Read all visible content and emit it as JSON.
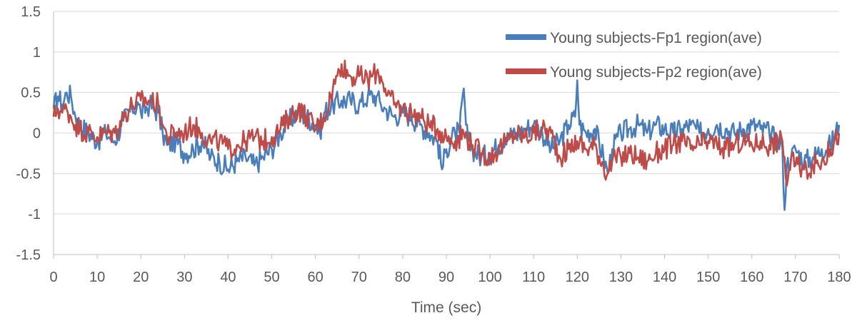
{
  "chart_data": {
    "type": "line",
    "title": "",
    "xlabel": "Time (sec)",
    "ylabel": "",
    "xlim": [
      0,
      180
    ],
    "ylim": [
      -1.5,
      1.5
    ],
    "x_ticks": [
      0,
      10,
      20,
      30,
      40,
      50,
      60,
      70,
      80,
      90,
      100,
      110,
      120,
      130,
      140,
      150,
      160,
      170,
      180
    ],
    "y_ticks": [
      -1.5,
      -1,
      -0.5,
      0,
      0.5,
      1,
      1.5
    ],
    "y_tick_labels": [
      "-1.5",
      "-1",
      "-0.5",
      "0",
      "0.5",
      "1",
      "1.5"
    ],
    "grid": "horizontal",
    "legend_position": "top-right",
    "series": [
      {
        "name": "Young subjects-Fp1 region(ave)",
        "color": "#4a7ebb",
        "x": [
          0,
          1,
          2,
          3,
          4,
          5,
          6,
          8,
          10,
          12,
          14,
          16,
          18,
          19.5,
          20,
          22,
          24,
          25,
          26,
          28,
          30,
          32,
          34,
          36,
          38,
          40,
          42,
          44,
          46,
          48,
          50,
          52,
          54,
          56,
          58,
          60,
          61,
          62,
          64,
          66,
          68,
          70,
          72,
          74,
          75,
          76,
          78,
          80,
          82,
          84,
          86,
          88,
          89,
          90,
          92,
          93,
          94,
          94.5,
          95,
          96,
          98,
          100,
          102,
          104,
          106,
          108,
          110,
          112,
          114,
          116,
          118,
          119.5,
          120,
          120.5,
          122,
          124,
          126,
          127,
          128,
          130,
          132,
          134,
          136,
          138,
          140,
          142,
          144,
          146,
          148,
          150,
          152,
          154,
          156,
          158,
          160,
          162,
          164,
          166,
          167,
          167.5,
          168,
          169,
          170,
          172,
          174,
          176,
          178,
          180
        ],
        "values": [
          0.3,
          0.45,
          0.35,
          0.5,
          0.45,
          0.2,
          0.1,
          0.0,
          -0.1,
          0.0,
          -0.1,
          0.15,
          0.3,
          0.35,
          0.25,
          0.35,
          0.25,
          0.0,
          -0.15,
          -0.1,
          -0.25,
          -0.2,
          -0.1,
          -0.3,
          -0.35,
          -0.45,
          -0.35,
          -0.3,
          -0.4,
          -0.3,
          -0.2,
          0.0,
          0.15,
          0.25,
          0.2,
          0.1,
          0.0,
          0.25,
          0.35,
          0.4,
          0.4,
          0.35,
          0.45,
          0.45,
          0.35,
          0.3,
          0.2,
          0.25,
          0.2,
          0.1,
          0.0,
          -0.1,
          -0.45,
          -0.2,
          0.0,
          0.0,
          0.55,
          0.1,
          -0.1,
          -0.2,
          -0.3,
          -0.25,
          -0.15,
          0.0,
          -0.05,
          0.05,
          0.1,
          0.0,
          -0.2,
          -0.1,
          0.1,
          0.2,
          0.65,
          0.1,
          0.0,
          0.05,
          -0.3,
          -0.5,
          -0.2,
          0.0,
          0.05,
          0.1,
          0.0,
          0.1,
          0.05,
          0.0,
          0.05,
          0.1,
          0.0,
          0.05,
          0.1,
          0.05,
          0.0,
          0.05,
          0.1,
          0.05,
          0.0,
          -0.1,
          -0.2,
          -0.95,
          -0.4,
          -0.3,
          -0.2,
          -0.35,
          -0.3,
          -0.2,
          -0.15,
          0.1
        ]
      },
      {
        "name": "Young subjects-Fp2 region(ave)",
        "color": "#be4b48",
        "x": [
          0,
          1,
          2,
          3,
          4,
          5,
          6,
          8,
          10,
          12,
          14,
          16,
          18,
          20,
          22,
          24,
          25,
          26,
          28,
          30,
          32,
          34,
          36,
          38,
          40,
          42,
          44,
          46,
          48,
          50,
          52,
          54,
          56,
          58,
          60,
          62,
          64,
          65,
          66,
          68,
          70,
          72,
          74,
          75,
          76,
          78,
          80,
          82,
          84,
          86,
          88,
          90,
          92,
          94,
          96,
          98,
          100,
          102,
          104,
          106,
          108,
          110,
          112,
          114,
          116,
          118,
          120,
          122,
          124,
          126,
          127,
          128,
          130,
          132,
          134,
          136,
          138,
          140,
          142,
          144,
          146,
          148,
          150,
          152,
          154,
          156,
          158,
          160,
          162,
          164,
          166,
          167,
          167.5,
          168,
          169,
          170,
          172,
          174,
          176,
          178,
          180
        ],
        "values": [
          0.2,
          0.3,
          0.25,
          0.3,
          0.2,
          0.1,
          0.05,
          0.0,
          -0.05,
          0.0,
          0.0,
          0.2,
          0.35,
          0.4,
          0.4,
          0.35,
          0.1,
          -0.05,
          0.0,
          0.0,
          0.1,
          0.0,
          -0.1,
          -0.1,
          -0.2,
          -0.15,
          -0.1,
          -0.05,
          -0.1,
          -0.05,
          0.05,
          0.2,
          0.3,
          0.2,
          0.05,
          0.2,
          0.55,
          0.7,
          0.85,
          0.7,
          0.7,
          0.65,
          0.75,
          0.7,
          0.55,
          0.35,
          0.3,
          0.25,
          0.2,
          0.1,
          0.05,
          -0.05,
          -0.1,
          0.0,
          -0.15,
          -0.25,
          -0.3,
          -0.2,
          -0.1,
          0.0,
          -0.05,
          0.0,
          0.05,
          0.0,
          -0.3,
          -0.2,
          -0.1,
          -0.2,
          -0.15,
          -0.4,
          -0.5,
          -0.35,
          -0.3,
          -0.25,
          -0.3,
          -0.35,
          -0.25,
          -0.2,
          -0.15,
          -0.1,
          -0.2,
          -0.15,
          -0.1,
          -0.15,
          -0.2,
          -0.15,
          -0.1,
          -0.15,
          -0.1,
          -0.15,
          -0.1,
          -0.1,
          -0.3,
          -0.65,
          -0.3,
          -0.4,
          -0.45,
          -0.4,
          -0.35,
          -0.2,
          0.0
        ]
      }
    ]
  }
}
